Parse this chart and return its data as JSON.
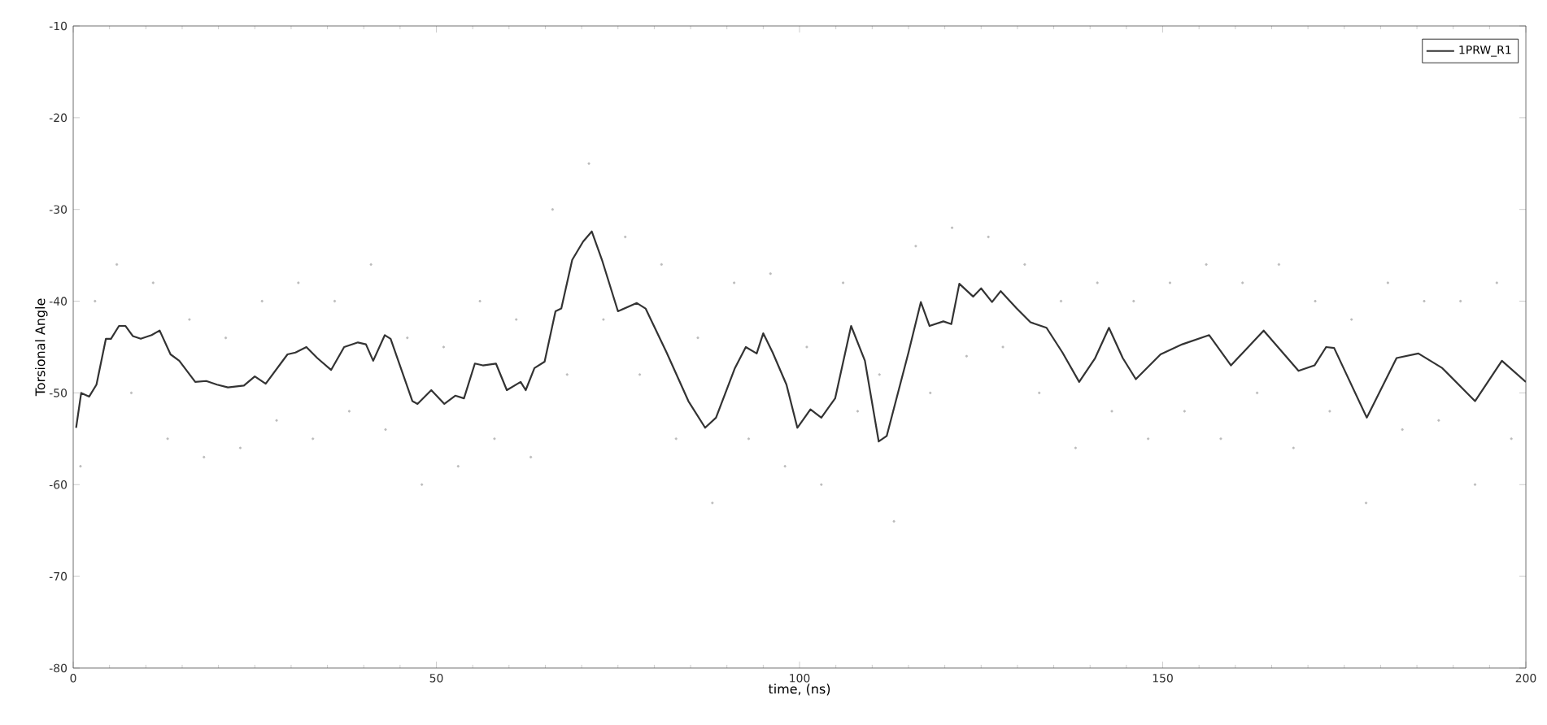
{
  "chart_data": {
    "type": "line",
    "xlabel": "time, (ns)",
    "ylabel": "Torsional Angle",
    "xlim": [
      0,
      200
    ],
    "ylim": [
      -80,
      -10
    ],
    "xticks": [
      0,
      50,
      100,
      150,
      200
    ],
    "yticks": [
      -80,
      -70,
      -60,
      -50,
      -40,
      -30,
      -20,
      -10
    ],
    "grid": false,
    "legend": "top right",
    "series": [
      {
        "type": "scatter",
        "color": "#bbbbbb",
        "x": [
          1,
          3,
          6,
          8,
          11,
          13,
          16,
          18,
          21,
          23,
          26,
          28,
          31,
          33,
          36,
          38,
          41,
          43,
          46,
          48,
          51,
          53,
          56,
          58,
          61,
          63,
          66,
          68,
          71,
          73,
          76,
          78,
          81,
          83,
          86,
          88,
          91,
          93,
          96,
          98,
          101,
          103,
          106,
          108,
          111,
          113,
          116,
          118,
          121,
          123,
          126,
          128,
          131,
          133,
          136,
          138,
          141,
          143,
          146,
          148,
          151,
          153,
          156,
          158,
          161,
          163,
          166,
          168,
          171,
          173,
          176,
          178,
          181,
          183,
          186,
          188,
          191,
          193,
          196,
          198
        ],
        "values": [
          -58,
          -40,
          -36,
          -50,
          -38,
          -55,
          -42,
          -57,
          -44,
          -56,
          -40,
          -53,
          -38,
          -55,
          -40,
          -52,
          -36,
          -54,
          -44,
          -60,
          -45,
          -58,
          -40,
          -55,
          -42,
          -57,
          -30,
          -48,
          -25,
          -42,
          -33,
          -48,
          -36,
          -55,
          -44,
          -62,
          -38,
          -55,
          -37,
          -58,
          -45,
          -60,
          -38,
          -52,
          -48,
          -64,
          -34,
          -50,
          -32,
          -46,
          -33,
          -45,
          -36,
          -50,
          -40,
          -56,
          -38,
          -52,
          -40,
          -55,
          -38,
          -52,
          -36,
          -55,
          -38,
          -50,
          -36,
          -56,
          -40,
          -52,
          -42,
          -62,
          -38,
          -54,
          -40,
          -53,
          -40,
          -60,
          -38,
          -55
        ]
      },
      {
        "name": "1PRW_R1",
        "color": "#333333",
        "x": [
          0.4,
          1.1,
          2.2,
          3.2,
          4.5,
          5.2,
          6.3,
          7.2,
          8.2,
          9.3,
          10.8,
          11.9,
          13.4,
          14.6,
          16.8,
          18.3,
          19.8,
          21.3,
          23.5,
          25.0,
          26.5,
          29.5,
          30.6,
          32.1,
          33.6,
          35.5,
          37.3,
          39.2,
          40.3,
          41.3,
          42.9,
          43.7,
          46.7,
          47.4,
          49.3,
          51.1,
          52.6,
          53.8,
          55.3,
          56.4,
          58.2,
          59.7,
          61.6,
          62.3,
          63.5,
          64.9,
          66.4,
          67.2,
          68.7,
          70.2,
          71.4,
          72.8,
          75.0,
          77.6,
          78.8,
          81.7,
          84.7,
          87.0,
          88.5,
          91.1,
          92.6,
          94.1,
          95.0,
          96.3,
          98.2,
          99.7,
          101.5,
          103.0,
          104.9,
          107.1,
          109.0,
          110.9,
          112.0,
          115.0,
          116.7,
          117.9,
          119.8,
          120.9,
          122.0,
          123.9,
          125.0,
          126.5,
          127.7,
          129.9,
          131.8,
          134.0,
          136.2,
          138.5,
          140.7,
          142.6,
          144.5,
          146.3,
          149.7,
          152.7,
          156.4,
          159.4,
          163.9,
          168.7,
          170.9,
          172.5,
          173.6,
          178.1,
          182.2,
          185.2,
          188.5,
          193.0,
          196.7,
          200.0
        ],
        "values": [
          -53.8,
          -50.0,
          -50.4,
          -49.1,
          -44.1,
          -44.1,
          -42.7,
          -42.7,
          -43.8,
          -44.1,
          -43.7,
          -43.2,
          -45.8,
          -46.5,
          -48.8,
          -48.7,
          -49.1,
          -49.4,
          -49.2,
          -48.2,
          -49.0,
          -45.8,
          -45.6,
          -45.0,
          -46.2,
          -47.5,
          -45.0,
          -44.5,
          -44.7,
          -46.5,
          -43.7,
          -44.1,
          -50.9,
          -51.2,
          -49.7,
          -51.2,
          -50.3,
          -50.6,
          -46.8,
          -47.0,
          -46.8,
          -49.7,
          -48.8,
          -49.7,
          -47.3,
          -46.6,
          -41.1,
          -40.8,
          -35.5,
          -33.5,
          -32.4,
          -35.5,
          -41.1,
          -40.2,
          -40.8,
          -45.6,
          -50.9,
          -53.8,
          -52.7,
          -47.3,
          -45.0,
          -45.7,
          -43.5,
          -45.6,
          -49.1,
          -53.8,
          -51.8,
          -52.7,
          -50.6,
          -42.7,
          -46.5,
          -55.3,
          -54.7,
          -45.6,
          -40.1,
          -42.7,
          -42.2,
          -42.5,
          -38.1,
          -39.5,
          -38.6,
          -40.1,
          -38.9,
          -40.8,
          -42.3,
          -42.9,
          -45.6,
          -48.8,
          -46.2,
          -42.9,
          -46.2,
          -48.5,
          -45.8,
          -44.7,
          -43.7,
          -47.0,
          -43.2,
          -47.6,
          -47.0,
          -45.0,
          -45.1,
          -52.7,
          -46.2,
          -45.7,
          -47.3,
          -50.9,
          -46.5,
          -48.8
        ]
      }
    ]
  }
}
